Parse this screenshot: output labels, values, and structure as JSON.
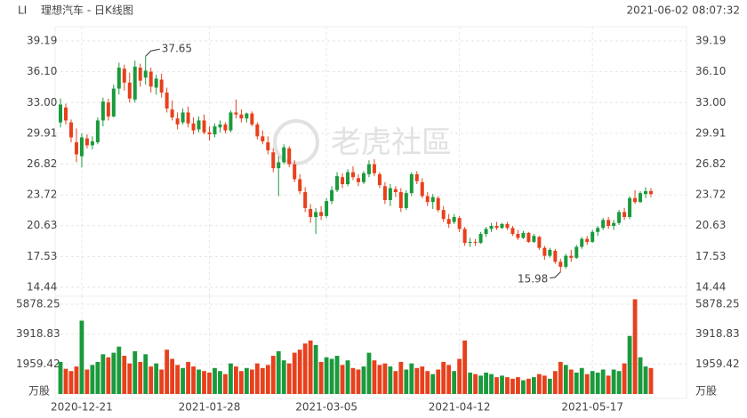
{
  "header": {
    "symbol": "LI",
    "title": "理想汽车 - 日K线图",
    "timestamp": "2021-06-02 08:07:32",
    "watermark": "老虎社區"
  },
  "chart_data": {
    "type": "candlestick",
    "up_color": "#1a9a3c",
    "down_color": "#e8401c",
    "categories": [
      null,
      null,
      null,
      null,
      "2020-12-21",
      null,
      null,
      null,
      null,
      null,
      null,
      null,
      null,
      null,
      null,
      null,
      null,
      null,
      null,
      null,
      null,
      null,
      null,
      null,
      null,
      null,
      null,
      null,
      "2021-01-28",
      null,
      null,
      null,
      null,
      null,
      null,
      null,
      null,
      null,
      null,
      null,
      null,
      null,
      null,
      null,
      null,
      null,
      null,
      null,
      null,
      null,
      "2021-03-05",
      null,
      null,
      null,
      null,
      null,
      null,
      null,
      null,
      null,
      null,
      null,
      null,
      null,
      null,
      null,
      null,
      null,
      null,
      null,
      null,
      null,
      null,
      null,
      null,
      "2021-04-12",
      null,
      null,
      null,
      null,
      null,
      null,
      null,
      null,
      null,
      null,
      null,
      null,
      null,
      null,
      null,
      null,
      null,
      null,
      null,
      null,
      null,
      null,
      null,
      null,
      "2021-05-17",
      null,
      null,
      null,
      null,
      null,
      null,
      null,
      null,
      null,
      null,
      null
    ],
    "candles": [
      [
        31.0,
        33.4,
        30.5,
        32.8
      ],
      [
        32.5,
        32.9,
        30.8,
        31.2
      ],
      [
        31.0,
        31.3,
        29.0,
        29.5
      ],
      [
        29.0,
        30.4,
        27.0,
        27.8
      ],
      [
        27.6,
        29.9,
        26.5,
        29.5
      ],
      [
        29.4,
        29.8,
        28.4,
        28.7
      ],
      [
        28.7,
        29.6,
        28.3,
        29.1
      ],
      [
        29.0,
        31.5,
        28.8,
        31.2
      ],
      [
        31.2,
        33.5,
        30.6,
        33.1
      ],
      [
        33.0,
        33.4,
        31.2,
        31.6
      ],
      [
        31.6,
        34.8,
        31.5,
        34.4
      ],
      [
        34.4,
        37.0,
        33.8,
        36.5
      ],
      [
        36.4,
        36.8,
        34.2,
        35.0
      ],
      [
        35.0,
        36.0,
        33.0,
        33.4
      ],
      [
        33.3,
        37.2,
        33.0,
        36.6
      ],
      [
        36.5,
        36.9,
        34.6,
        35.2
      ],
      [
        35.5,
        37.65,
        34.8,
        36.2
      ],
      [
        36.1,
        36.5,
        34.0,
        34.6
      ],
      [
        34.5,
        35.8,
        33.8,
        35.4
      ],
      [
        35.3,
        35.9,
        33.5,
        34.0
      ],
      [
        34.0,
        34.5,
        32.0,
        32.4
      ],
      [
        32.3,
        33.2,
        31.2,
        31.5
      ],
      [
        31.4,
        32.0,
        30.3,
        30.8
      ],
      [
        31.0,
        32.4,
        30.8,
        32.0
      ],
      [
        32.0,
        32.6,
        30.5,
        30.9
      ],
      [
        30.9,
        31.5,
        29.8,
        30.2
      ],
      [
        30.3,
        31.6,
        30.0,
        31.2
      ],
      [
        31.2,
        31.8,
        29.8,
        30.0
      ],
      [
        30.0,
        30.6,
        29.2,
        29.8
      ],
      [
        29.8,
        30.9,
        29.5,
        30.6
      ],
      [
        30.5,
        31.2,
        30.0,
        30.8
      ],
      [
        30.8,
        31.0,
        29.9,
        30.2
      ],
      [
        30.2,
        32.2,
        30.0,
        32.0
      ],
      [
        32.0,
        33.3,
        31.4,
        31.8
      ],
      [
        31.8,
        32.3,
        31.0,
        31.4
      ],
      [
        31.4,
        32.0,
        31.0,
        31.9
      ],
      [
        31.9,
        32.1,
        30.6,
        30.8
      ],
      [
        30.8,
        31.0,
        29.3,
        29.6
      ],
      [
        29.6,
        30.2,
        28.8,
        29.1
      ],
      [
        29.0,
        29.6,
        27.8,
        28.2
      ],
      [
        28.0,
        28.4,
        26.0,
        26.4
      ],
      [
        26.4,
        27.6,
        23.6,
        27.0
      ],
      [
        27.0,
        28.8,
        26.8,
        28.5
      ],
      [
        28.4,
        28.6,
        26.5,
        26.8
      ],
      [
        26.8,
        27.2,
        25.0,
        25.3
      ],
      [
        25.3,
        25.8,
        23.8,
        24.1
      ],
      [
        24.0,
        24.5,
        22.0,
        22.4
      ],
      [
        22.3,
        22.8,
        20.9,
        21.5
      ],
      [
        21.5,
        22.4,
        19.8,
        22.0
      ],
      [
        22.0,
        22.6,
        21.2,
        21.6
      ],
      [
        21.6,
        23.4,
        21.4,
        23.1
      ],
      [
        23.1,
        24.6,
        22.8,
        24.2
      ],
      [
        24.2,
        26.0,
        24.0,
        25.6
      ],
      [
        25.5,
        25.9,
        24.4,
        24.8
      ],
      [
        24.8,
        26.3,
        24.6,
        26.0
      ],
      [
        26.0,
        26.6,
        25.2,
        25.5
      ],
      [
        25.4,
        25.8,
        24.6,
        25.0
      ],
      [
        25.0,
        26.1,
        24.8,
        25.9
      ],
      [
        25.8,
        27.2,
        25.5,
        26.8
      ],
      [
        26.8,
        27.3,
        25.6,
        25.9
      ],
      [
        25.8,
        26.0,
        24.4,
        24.7
      ],
      [
        24.6,
        25.0,
        22.8,
        23.2
      ],
      [
        23.2,
        24.8,
        22.6,
        24.4
      ],
      [
        24.3,
        24.6,
        23.5,
        24.0
      ],
      [
        24.0,
        24.4,
        22.0,
        22.4
      ],
      [
        22.4,
        24.2,
        22.2,
        23.9
      ],
      [
        23.9,
        26.0,
        23.6,
        25.8
      ],
      [
        25.8,
        26.1,
        24.8,
        25.1
      ],
      [
        25.0,
        25.4,
        23.4,
        23.6
      ],
      [
        23.6,
        24.0,
        22.6,
        23.0
      ],
      [
        23.0,
        23.8,
        22.3,
        23.5
      ],
      [
        23.4,
        23.6,
        22.0,
        22.2
      ],
      [
        22.2,
        22.6,
        21.0,
        21.3
      ],
      [
        21.3,
        21.8,
        20.4,
        20.8
      ],
      [
        21.0,
        21.8,
        20.8,
        21.5
      ],
      [
        21.4,
        21.6,
        20.0,
        20.3
      ],
      [
        20.3,
        20.5,
        18.6,
        18.9
      ],
      [
        18.9,
        19.4,
        18.5,
        19.0
      ],
      [
        19.0,
        19.3,
        18.6,
        18.9
      ],
      [
        18.9,
        20.0,
        18.8,
        19.8
      ],
      [
        19.8,
        20.5,
        19.5,
        20.3
      ],
      [
        20.3,
        20.9,
        20.0,
        20.6
      ],
      [
        20.6,
        21.0,
        20.2,
        20.4
      ],
      [
        20.4,
        20.9,
        20.3,
        20.8
      ],
      [
        20.8,
        21.0,
        20.2,
        20.4
      ],
      [
        20.4,
        20.6,
        19.6,
        19.8
      ],
      [
        19.8,
        20.2,
        19.2,
        19.4
      ],
      [
        19.4,
        20.1,
        19.3,
        19.9
      ],
      [
        19.9,
        20.0,
        18.9,
        19.0
      ],
      [
        19.0,
        19.8,
        18.9,
        19.6
      ],
      [
        19.5,
        19.6,
        18.2,
        18.4
      ],
      [
        18.4,
        18.6,
        17.2,
        17.6
      ],
      [
        17.6,
        18.4,
        17.4,
        18.2
      ],
      [
        18.1,
        18.3,
        16.8,
        17.0
      ],
      [
        17.0,
        17.3,
        15.98,
        16.5
      ],
      [
        16.5,
        17.8,
        16.3,
        17.6
      ],
      [
        17.6,
        18.2,
        17.0,
        17.4
      ],
      [
        17.4,
        18.7,
        17.3,
        18.5
      ],
      [
        18.5,
        19.5,
        18.3,
        19.3
      ],
      [
        19.3,
        19.6,
        18.7,
        19.0
      ],
      [
        19.0,
        20.2,
        18.9,
        20.0
      ],
      [
        20.0,
        20.6,
        19.6,
        20.4
      ],
      [
        20.4,
        21.4,
        20.2,
        21.2
      ],
      [
        21.2,
        21.5,
        20.3,
        20.6
      ],
      [
        20.6,
        21.2,
        20.2,
        20.9
      ],
      [
        20.9,
        22.2,
        20.7,
        22.0
      ],
      [
        22.0,
        22.4,
        21.2,
        21.5
      ],
      [
        21.5,
        23.6,
        21.3,
        23.4
      ],
      [
        23.4,
        24.2,
        22.8,
        23.0
      ],
      [
        23.0,
        24.1,
        22.9,
        23.9
      ],
      [
        23.8,
        24.5,
        23.4,
        24.1
      ],
      [
        24.1,
        24.4,
        23.5,
        23.8
      ]
    ],
    "volume": [
      2100,
      1650,
      1500,
      1800,
      4800,
      1600,
      1900,
      2100,
      2600,
      2400,
      2700,
      3100,
      2500,
      2000,
      2800,
      2100,
      2600,
      1800,
      2000,
      1600,
      2900,
      2300,
      1900,
      1700,
      2100,
      1800,
      1600,
      1500,
      1400,
      1700,
      1500,
      1300,
      2000,
      1800,
      1500,
      1700,
      1600,
      2000,
      1700,
      1900,
      2500,
      2800,
      2200,
      2000,
      2700,
      2900,
      3300,
      3500,
      3200,
      2100,
      2400,
      2300,
      2500,
      1900,
      2200,
      1700,
      1600,
      1800,
      2700,
      2200,
      1900,
      2000,
      1800,
      1500,
      2100,
      1600,
      2000,
      1700,
      1800,
      1500,
      1300,
      1600,
      2100,
      1900,
      1500,
      2300,
      3500,
      1400,
      1300,
      1200,
      1400,
      1300,
      1100,
      1200,
      1100,
      1000,
      1100,
      900,
      1000,
      1100,
      1300,
      1200,
      1000,
      1500,
      2100,
      1900,
      1600,
      1400,
      1700,
      1300,
      1500,
      1400,
      1600,
      1200,
      1600,
      1500,
      2000,
      3800,
      6200,
      2400,
      1800,
      1700
    ],
    "ylim": [
      14.44,
      39.19
    ],
    "yticks": [
      39.19,
      {
        "value": 36.1,
        "label": "36.10"
      },
      {
        "value": 33.0,
        "label": "33.00"
      },
      29.91,
      26.82,
      23.72,
      20.63,
      17.53,
      14.44
    ],
    "volume_ylim": [
      0,
      5878.25
    ],
    "volume_yticks": [
      5878.25,
      3918.83,
      1959.42
    ],
    "volume_unit": "万股",
    "grid": true
  }
}
